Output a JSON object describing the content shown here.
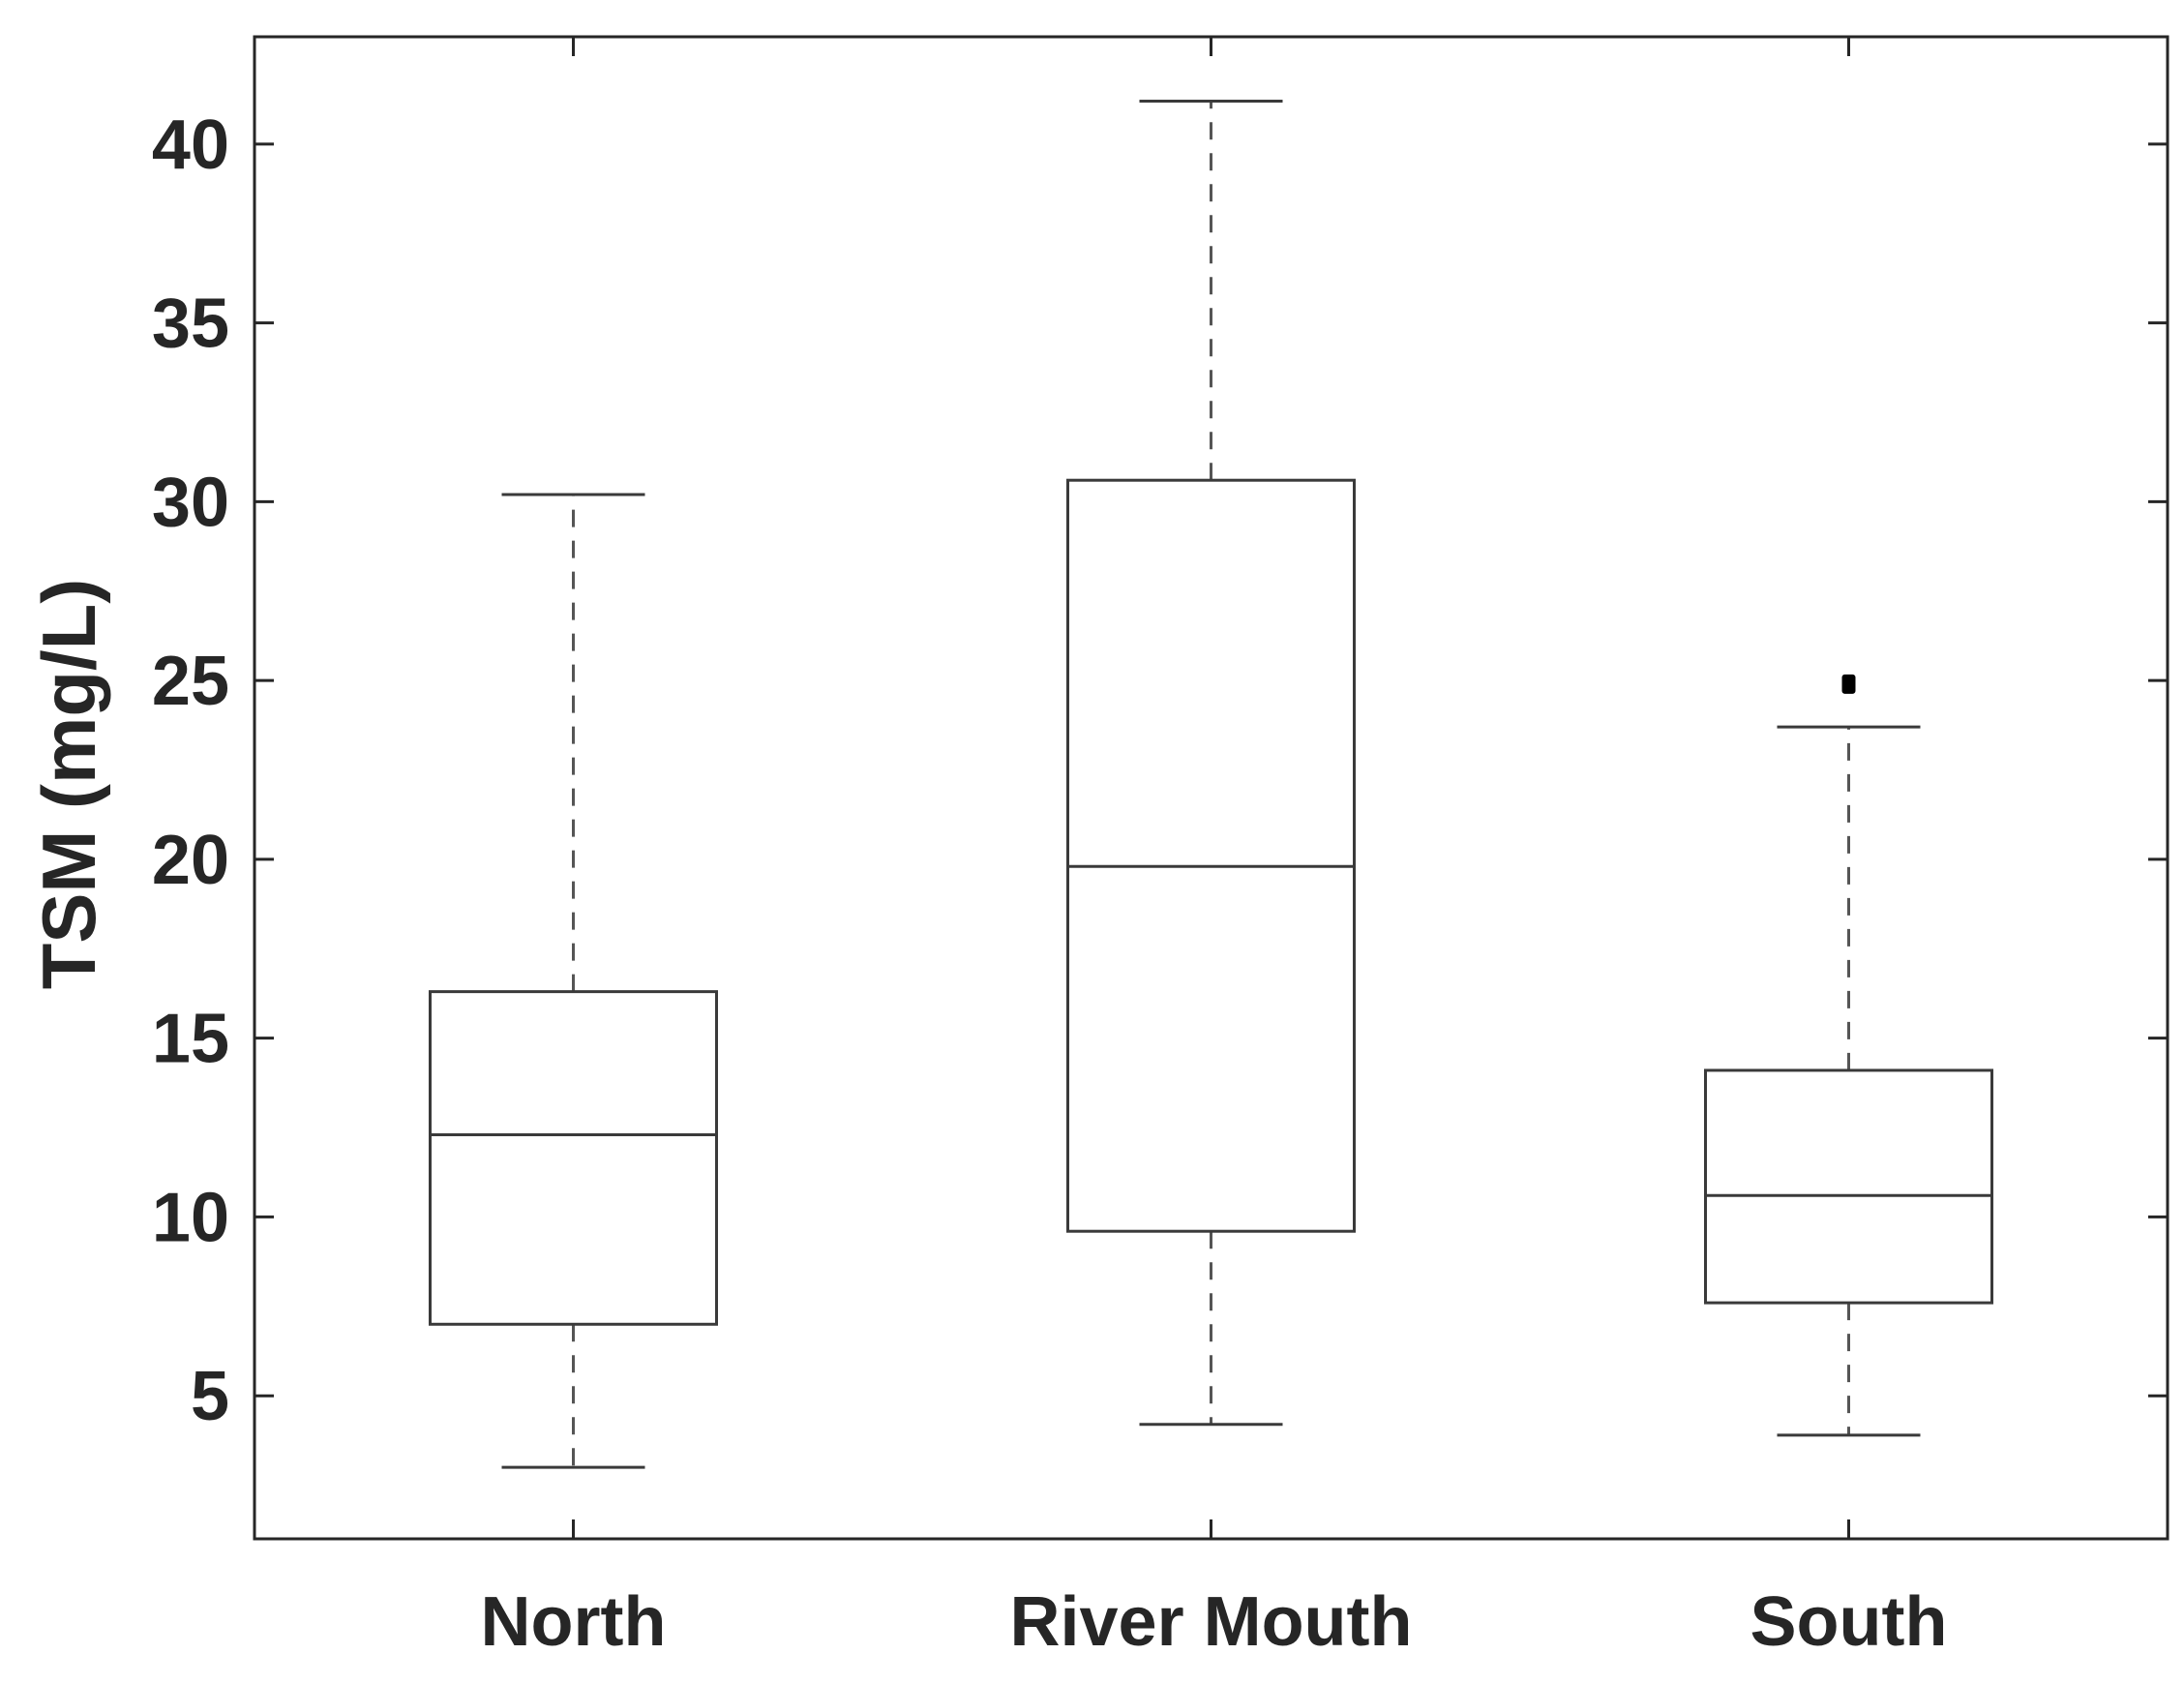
{
  "chart_data": {
    "type": "boxplot",
    "title": "",
    "xlabel": "",
    "ylabel": "TSM (mg/L)",
    "ylim": [
      1,
      43
    ],
    "yticks": [
      5,
      10,
      15,
      20,
      25,
      30,
      35,
      40
    ],
    "grid": false,
    "colors": {
      "axes": "#262626",
      "box": "#3a3a3a",
      "whisker": "#555555",
      "outlier": "#000000"
    },
    "categories": [
      "North",
      "River Mouth",
      "South"
    ],
    "boxes": [
      {
        "category": "North",
        "whisker_low": 3.0,
        "q1": 7.0,
        "median": 12.3,
        "q3": 16.3,
        "whisker_high": 30.2,
        "outliers": []
      },
      {
        "category": "River Mouth",
        "whisker_low": 4.2,
        "q1": 9.6,
        "median": 19.8,
        "q3": 30.6,
        "whisker_high": 41.2,
        "outliers": []
      },
      {
        "category": "South",
        "whisker_low": 3.9,
        "q1": 7.6,
        "median": 10.6,
        "q3": 14.1,
        "whisker_high": 23.7,
        "outliers": [
          24.9
        ]
      }
    ]
  }
}
